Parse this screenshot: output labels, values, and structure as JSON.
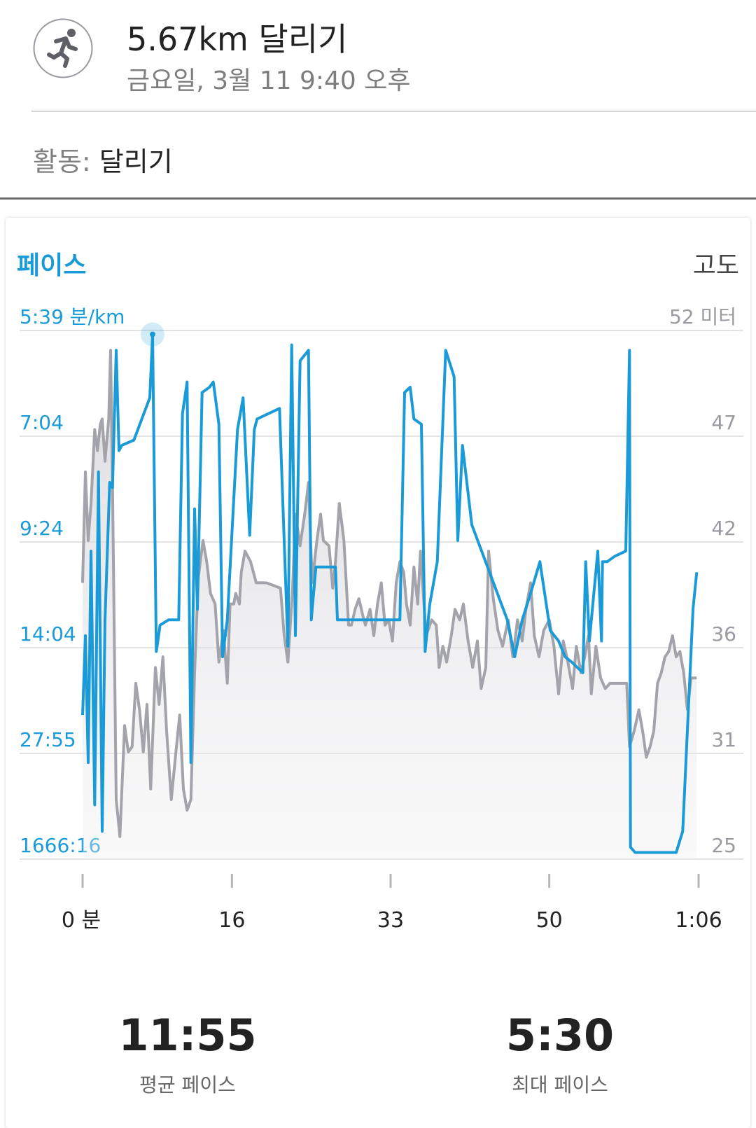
{
  "header": {
    "title": "5.67km 달리기",
    "subtitle": "금요일, 3월 11 9:40 오후",
    "icon": "running-person-icon"
  },
  "activity": {
    "label": "활동:",
    "value": "달리기"
  },
  "chart": {
    "left_title": "페이스",
    "right_title": "고도",
    "pace_ticks": [
      "5:39 분/km",
      "7:04",
      "9:24",
      "14:04",
      "27:55",
      "1666:16"
    ],
    "alt_ticks": [
      "52 미터",
      "47",
      "42",
      "36",
      "31",
      "25"
    ],
    "x_ticks": [
      "0 분",
      "16",
      "33",
      "50",
      "1:06"
    ],
    "colors": {
      "pace": "#1a9bd7",
      "altitude": "#a3a3ab",
      "grid": "#e3e3e3"
    }
  },
  "chart_data": {
    "type": "line",
    "xlabel": "",
    "x_unit_ticks": [
      0,
      16,
      33,
      50,
      66
    ],
    "series": [
      {
        "role": "pace",
        "axis": "left",
        "points": [
          [
            0,
            0.73
          ],
          [
            0.3,
            0.58
          ],
          [
            0.6,
            0.82
          ],
          [
            0.9,
            0.42
          ],
          [
            1.3,
            0.9
          ],
          [
            1.7,
            0.27
          ],
          [
            2.1,
            0.95
          ],
          [
            2.4,
            0.55
          ],
          [
            2.9,
            0.29
          ],
          [
            3.2,
            0.3
          ],
          [
            3.6,
            0.04
          ],
          [
            3.9,
            0.23
          ],
          [
            4.2,
            0.22
          ],
          [
            5.5,
            0.21
          ],
          [
            7.2,
            0.13
          ],
          [
            7.5,
            0.01
          ],
          [
            7.9,
            0.61
          ],
          [
            8.3,
            0.56
          ],
          [
            9.2,
            0.55
          ],
          [
            10.3,
            0.55
          ],
          [
            10.7,
            0.16
          ],
          [
            11.2,
            0.1
          ],
          [
            11.6,
            0.82
          ],
          [
            12.0,
            0.34
          ],
          [
            12.3,
            0.53
          ],
          [
            12.8,
            0.12
          ],
          [
            13.6,
            0.11
          ],
          [
            14.0,
            0.1
          ],
          [
            14.6,
            0.18
          ],
          [
            15.0,
            0.62
          ],
          [
            15.5,
            0.55
          ],
          [
            16.6,
            0.19
          ],
          [
            17.2,
            0.13
          ],
          [
            17.9,
            0.39
          ],
          [
            18.4,
            0.19
          ],
          [
            18.7,
            0.17
          ],
          [
            21.1,
            0.15
          ],
          [
            22.0,
            0.6
          ],
          [
            22.4,
            0.03
          ],
          [
            22.8,
            0.58
          ],
          [
            23.3,
            0.06
          ],
          [
            24.2,
            0.04
          ],
          [
            24.5,
            0.55
          ],
          [
            25.0,
            0.45
          ],
          [
            27.1,
            0.45
          ],
          [
            27.3,
            0.55
          ],
          [
            28.5,
            0.55
          ],
          [
            30.0,
            0.55
          ],
          [
            32.0,
            0.55
          ],
          [
            34.0,
            0.55
          ],
          [
            34.5,
            0.12
          ],
          [
            35.1,
            0.11
          ],
          [
            35.5,
            0.17
          ],
          [
            36.3,
            0.18
          ],
          [
            36.7,
            0.61
          ],
          [
            37.2,
            0.52
          ],
          [
            38.0,
            0.44
          ],
          [
            38.9,
            0.04
          ],
          [
            39.8,
            0.09
          ],
          [
            40.2,
            0.4
          ],
          [
            40.7,
            0.22
          ],
          [
            41.7,
            0.37
          ],
          [
            45.5,
            0.55
          ],
          [
            46.3,
            0.62
          ],
          [
            47.1,
            0.55
          ],
          [
            48.0,
            0.5
          ],
          [
            49.0,
            0.44
          ],
          [
            50.1,
            0.57
          ],
          [
            51.0,
            0.59
          ],
          [
            51.7,
            0.62
          ],
          [
            52.4,
            0.63
          ],
          [
            53.0,
            0.64
          ],
          [
            53.6,
            0.65
          ],
          [
            53.9,
            0.44
          ],
          [
            54.3,
            0.59
          ],
          [
            55.2,
            0.42
          ],
          [
            55.6,
            0.59
          ],
          [
            55.7,
            0.44
          ],
          [
            56.2,
            0.44
          ],
          [
            57.0,
            0.43
          ],
          [
            58.2,
            0.42
          ],
          [
            58.6,
            0.04
          ],
          [
            58.7,
            0.98
          ],
          [
            59.2,
            0.99
          ],
          [
            60.0,
            0.99
          ],
          [
            61.0,
            0.99
          ],
          [
            62.2,
            0.99
          ],
          [
            63.6,
            0.99
          ],
          [
            64.3,
            0.95
          ],
          [
            65.4,
            0.53
          ],
          [
            65.8,
            0.46
          ]
        ]
      },
      {
        "role": "altitude",
        "axis": "right",
        "points": [
          [
            0,
            0.48
          ],
          [
            0.3,
            0.27
          ],
          [
            0.6,
            0.4
          ],
          [
            0.9,
            0.33
          ],
          [
            1.3,
            0.19
          ],
          [
            1.6,
            0.23
          ],
          [
            1.9,
            0.18
          ],
          [
            2.1,
            0.17
          ],
          [
            2.4,
            0.25
          ],
          [
            2.8,
            0.17
          ],
          [
            3.0,
            0.04
          ],
          [
            3.2,
            0.29
          ],
          [
            3.6,
            0.89
          ],
          [
            4.0,
            0.96
          ],
          [
            4.5,
            0.75
          ],
          [
            4.9,
            0.8
          ],
          [
            5.3,
            0.79
          ],
          [
            5.7,
            0.67
          ],
          [
            6.1,
            0.72
          ],
          [
            6.5,
            0.8
          ],
          [
            6.9,
            0.71
          ],
          [
            7.3,
            0.87
          ],
          [
            7.8,
            0.64
          ],
          [
            8.2,
            0.71
          ],
          [
            8.6,
            0.62
          ],
          [
            9.0,
            0.76
          ],
          [
            9.5,
            0.89
          ],
          [
            10.0,
            0.8
          ],
          [
            10.4,
            0.73
          ],
          [
            10.8,
            0.87
          ],
          [
            11.2,
            0.91
          ],
          [
            11.6,
            0.89
          ],
          [
            12.0,
            0.65
          ],
          [
            12.4,
            0.47
          ],
          [
            12.9,
            0.4
          ],
          [
            13.3,
            0.44
          ],
          [
            13.7,
            0.5
          ],
          [
            14.2,
            0.52
          ],
          [
            14.6,
            0.63
          ],
          [
            15.1,
            0.57
          ],
          [
            15.5,
            0.67
          ],
          [
            15.8,
            0.52
          ],
          [
            16.2,
            0.52
          ],
          [
            16.4,
            0.5
          ],
          [
            16.8,
            0.52
          ],
          [
            17.0,
            0.46
          ],
          [
            17.4,
            0.42
          ],
          [
            18.0,
            0.44
          ],
          [
            18.6,
            0.48
          ],
          [
            19.7,
            0.48
          ],
          [
            21.2,
            0.49
          ],
          [
            21.6,
            0.58
          ],
          [
            22.0,
            0.63
          ],
          [
            22.5,
            0.49
          ],
          [
            22.8,
            0.35
          ],
          [
            23.3,
            0.41
          ],
          [
            23.8,
            0.35
          ],
          [
            24.2,
            0.29
          ],
          [
            24.6,
            0.48
          ],
          [
            25.1,
            0.4
          ],
          [
            25.5,
            0.35
          ],
          [
            25.8,
            0.4
          ],
          [
            26.4,
            0.41
          ],
          [
            26.8,
            0.49
          ],
          [
            27.1,
            0.44
          ],
          [
            27.5,
            0.33
          ],
          [
            28.0,
            0.4
          ],
          [
            28.5,
            0.56
          ],
          [
            28.8,
            0.56
          ],
          [
            29.2,
            0.53
          ],
          [
            29.6,
            0.51
          ],
          [
            30.0,
            0.54
          ],
          [
            30.3,
            0.56
          ],
          [
            30.8,
            0.53
          ],
          [
            31.2,
            0.58
          ],
          [
            31.6,
            0.52
          ],
          [
            32.0,
            0.48
          ],
          [
            32.4,
            0.56
          ],
          [
            32.8,
            0.55
          ],
          [
            33.2,
            0.59
          ],
          [
            33.6,
            0.48
          ],
          [
            34.0,
            0.44
          ],
          [
            34.4,
            0.46
          ],
          [
            34.7,
            0.52
          ],
          [
            35.1,
            0.56
          ],
          [
            35.5,
            0.45
          ],
          [
            35.9,
            0.52
          ],
          [
            36.2,
            0.42
          ],
          [
            36.8,
            0.58
          ],
          [
            37.4,
            0.55
          ],
          [
            37.9,
            0.56
          ],
          [
            38.2,
            0.64
          ],
          [
            38.6,
            0.6
          ],
          [
            39.0,
            0.63
          ],
          [
            39.5,
            0.58
          ],
          [
            39.9,
            0.53
          ],
          [
            40.4,
            0.55
          ],
          [
            40.8,
            0.52
          ],
          [
            41.3,
            0.59
          ],
          [
            41.8,
            0.64
          ],
          [
            42.3,
            0.59
          ],
          [
            42.7,
            0.68
          ],
          [
            43.2,
            0.64
          ],
          [
            43.5,
            0.42
          ],
          [
            44.0,
            0.51
          ],
          [
            44.5,
            0.57
          ],
          [
            45.0,
            0.6
          ],
          [
            45.6,
            0.55
          ],
          [
            46.1,
            0.62
          ],
          [
            46.6,
            0.55
          ],
          [
            47.1,
            0.59
          ],
          [
            47.5,
            0.53
          ],
          [
            48.0,
            0.48
          ],
          [
            48.4,
            0.58
          ],
          [
            48.9,
            0.62
          ],
          [
            49.4,
            0.57
          ],
          [
            50.0,
            0.55
          ],
          [
            50.5,
            0.6
          ],
          [
            51.0,
            0.69
          ],
          [
            51.5,
            0.59
          ],
          [
            52.0,
            0.63
          ],
          [
            52.5,
            0.68
          ],
          [
            52.9,
            0.6
          ],
          [
            53.4,
            0.65
          ],
          [
            53.8,
            0.62
          ],
          [
            54.2,
            0.58
          ],
          [
            54.5,
            0.69
          ],
          [
            55.0,
            0.6
          ],
          [
            55.5,
            0.66
          ],
          [
            56.0,
            0.68
          ],
          [
            56.5,
            0.67
          ],
          [
            57.0,
            0.67
          ],
          [
            57.5,
            0.67
          ],
          [
            58.0,
            0.67
          ],
          [
            58.3,
            0.67
          ],
          [
            58.6,
            0.79
          ],
          [
            59.1,
            0.76
          ],
          [
            59.6,
            0.72
          ],
          [
            60.0,
            0.76
          ],
          [
            60.4,
            0.81
          ],
          [
            60.8,
            0.79
          ],
          [
            61.2,
            0.76
          ],
          [
            61.6,
            0.67
          ],
          [
            62.0,
            0.65
          ],
          [
            62.4,
            0.62
          ],
          [
            62.8,
            0.61
          ],
          [
            63.2,
            0.58
          ],
          [
            63.6,
            0.62
          ],
          [
            64.0,
            0.61
          ],
          [
            64.4,
            0.65
          ],
          [
            64.8,
            0.72
          ],
          [
            65.2,
            0.66
          ],
          [
            65.8,
            0.66
          ]
        ]
      }
    ]
  },
  "stats": [
    {
      "value": "11:55",
      "label": "평균 페이스"
    },
    {
      "value": "5:30",
      "label": "최대 페이스"
    }
  ]
}
